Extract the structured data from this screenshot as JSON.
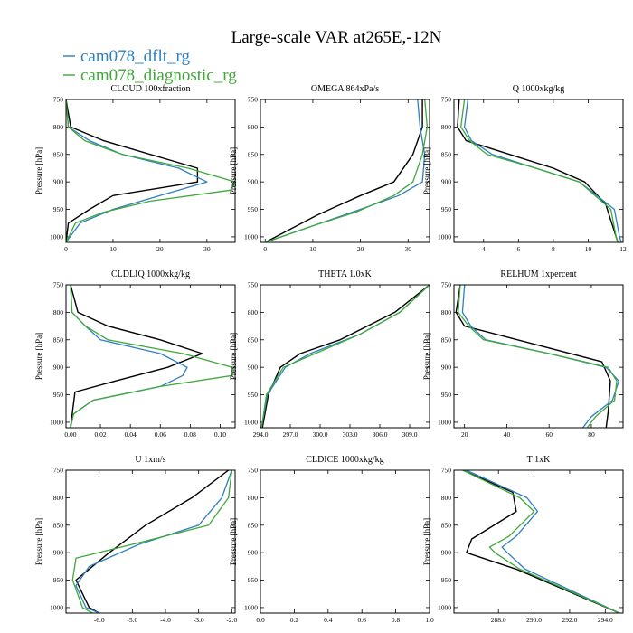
{
  "figure": {
    "title": "Large-scale VAR at265E,-12N",
    "ylabel": "Pressure [hPa]",
    "legend": [
      {
        "name": "cam078_dflt_rg",
        "color": "#2f7fc0"
      },
      {
        "name": "cam078_diagnostic_rg",
        "color": "#3fa83a"
      }
    ],
    "reference_color": "#000000"
  },
  "chart_data": [
    {
      "type": "line",
      "title": "CLOUD  100xfraction",
      "xlim": [
        0,
        36
      ],
      "ylim": [
        1010,
        750
      ],
      "y_ticks": [
        750,
        800,
        850,
        900,
        950,
        1000
      ],
      "x_ticks": [
        0,
        10,
        20,
        30
      ],
      "x_tick_labels": [
        "0",
        "10",
        "20",
        "30"
      ],
      "reference": [
        [
          0,
          750
        ],
        [
          1,
          800
        ],
        [
          8,
          825
        ],
        [
          28,
          875
        ],
        [
          28,
          900
        ],
        [
          10,
          925
        ],
        [
          5,
          950
        ],
        [
          0.5,
          975
        ],
        [
          0,
          1010
        ]
      ],
      "series": [
        {
          "values": [
            [
              0,
              750
            ],
            [
              0.5,
              800
            ],
            [
              5,
              825
            ],
            [
              12,
              850
            ],
            [
              24,
              875
            ],
            [
              30,
              900
            ],
            [
              20,
              925
            ],
            [
              10,
              950
            ],
            [
              3,
              975
            ],
            [
              0,
              1010
            ]
          ]
        },
        {
          "values": [
            [
              0,
              750
            ],
            [
              0.5,
              800
            ],
            [
              4,
              825
            ],
            [
              12,
              850
            ],
            [
              26,
              875
            ],
            [
              36,
              900
            ],
            [
              35,
              915
            ],
            [
              18,
              935
            ],
            [
              8,
              955
            ],
            [
              2,
              975
            ],
            [
              0,
              1010
            ]
          ]
        }
      ]
    },
    {
      "type": "line",
      "title": "OMEGA  864xPa/s",
      "xlim": [
        -1,
        34.5
      ],
      "ylim": [
        1010,
        750
      ],
      "y_ticks": [
        750,
        800,
        850,
        900,
        950,
        1000
      ],
      "x_ticks": [
        0,
        10,
        20,
        30
      ],
      "x_tick_labels": [
        "0",
        "10",
        "20",
        "30"
      ],
      "reference": [
        [
          33,
          750
        ],
        [
          33,
          800
        ],
        [
          31,
          850
        ],
        [
          27,
          900
        ],
        [
          20,
          925
        ],
        [
          11,
          960
        ],
        [
          0,
          1010
        ]
      ],
      "series": [
        {
          "values": [
            [
              32,
              750
            ],
            [
              32.5,
              800
            ],
            [
              33.5,
              850
            ],
            [
              33,
              900
            ],
            [
              28,
              925
            ],
            [
              20,
              950
            ],
            [
              10,
              980
            ],
            [
              0,
              1010
            ]
          ]
        },
        {
          "values": [
            [
              33.5,
              750
            ],
            [
              34,
              800
            ],
            [
              33,
              850
            ],
            [
              31,
              900
            ],
            [
              27,
              925
            ],
            [
              19,
              955
            ],
            [
              10,
              980
            ],
            [
              0,
              1010
            ]
          ]
        }
      ]
    },
    {
      "type": "line",
      "title": "Q  1000xkg/kg",
      "xlim": [
        2.3,
        12
      ],
      "ylim": [
        1010,
        750
      ],
      "y_ticks": [
        750,
        800,
        850,
        900,
        950,
        1000
      ],
      "x_ticks": [
        4,
        6,
        8,
        10,
        12
      ],
      "x_tick_labels": [
        "4",
        "6",
        "8",
        "10",
        "12"
      ],
      "reference": [
        [
          2.6,
          750
        ],
        [
          2.5,
          800
        ],
        [
          3,
          825
        ],
        [
          6,
          855
        ],
        [
          8,
          875
        ],
        [
          9.8,
          900
        ],
        [
          11,
          940
        ],
        [
          11.6,
          1000
        ],
        [
          11.7,
          1010
        ]
      ],
      "series": [
        {
          "values": [
            [
              3.1,
              750
            ],
            [
              2.9,
              800
            ],
            [
              3.3,
              825
            ],
            [
              4.5,
              850
            ],
            [
              7,
              875
            ],
            [
              9.5,
              900
            ],
            [
              11.5,
              950
            ],
            [
              11.8,
              1000
            ],
            [
              11.9,
              1010
            ]
          ]
        },
        {
          "values": [
            [
              2.9,
              750
            ],
            [
              2.7,
              800
            ],
            [
              3.2,
              825
            ],
            [
              4.2,
              850
            ],
            [
              7,
              875
            ],
            [
              9.5,
              900
            ],
            [
              11.3,
              950
            ],
            [
              11.6,
              1000
            ],
            [
              11.7,
              1010
            ]
          ]
        }
      ]
    },
    {
      "type": "line",
      "title": "CLDLIQ  1000xkg/kg",
      "xlim": [
        -0.003,
        0.11
      ],
      "ylim": [
        1010,
        750
      ],
      "y_ticks": [
        750,
        800,
        850,
        900,
        950,
        1000
      ],
      "x_ticks": [
        0,
        0.02,
        0.04,
        0.06,
        0.08,
        0.1
      ],
      "x_tick_labels": [
        "0.00",
        "0.02",
        "0.04",
        "0.06",
        "0.08",
        "0.10"
      ],
      "reference": [
        [
          0,
          750
        ],
        [
          0.005,
          800
        ],
        [
          0.025,
          825
        ],
        [
          0.06,
          850
        ],
        [
          0.088,
          875
        ],
        [
          0.065,
          900
        ],
        [
          0.03,
          925
        ],
        [
          0.003,
          945
        ],
        [
          0,
          1010
        ]
      ],
      "series": [
        {
          "values": [
            [
              0,
              750
            ],
            [
              0.001,
              800
            ],
            [
              0.01,
              825
            ],
            [
              0.02,
              850
            ],
            [
              0.06,
              875
            ],
            [
              0.078,
              900
            ],
            [
              0.075,
              915
            ],
            [
              0.06,
              935
            ],
            [
              0.015,
              960
            ],
            [
              0.002,
              985
            ],
            [
              0,
              1010
            ]
          ]
        },
        {
          "values": [
            [
              0,
              750
            ],
            [
              0.001,
              800
            ],
            [
              0.01,
              825
            ],
            [
              0.025,
              850
            ],
            [
              0.075,
              875
            ],
            [
              0.108,
              900
            ],
            [
              0.108,
              915
            ],
            [
              0.06,
              935
            ],
            [
              0.015,
              960
            ],
            [
              0.002,
              985
            ],
            [
              0,
              1010
            ]
          ]
        }
      ]
    },
    {
      "type": "line",
      "title": "THETA  1.0xK",
      "xlim": [
        294,
        311
      ],
      "ylim": [
        1010,
        750
      ],
      "y_ticks": [
        750,
        800,
        850,
        900,
        950,
        1000
      ],
      "x_ticks": [
        294,
        297,
        300,
        303,
        306,
        309
      ],
      "x_tick_labels": [
        "294.0",
        "297.0",
        "300.0",
        "303.0",
        "306.0",
        "309.0"
      ],
      "reference": [
        [
          311,
          750
        ],
        [
          307.5,
          800
        ],
        [
          302,
          850
        ],
        [
          298,
          875
        ],
        [
          296,
          900
        ],
        [
          294.8,
          950
        ],
        [
          294.3,
          1000
        ],
        [
          294.2,
          1010
        ]
      ],
      "series": [
        {
          "values": [
            [
              311,
              750
            ],
            [
              308,
              800
            ],
            [
              304,
              840
            ],
            [
              299,
              875
            ],
            [
              296.5,
              900
            ],
            [
              294.7,
              950
            ],
            [
              294.2,
              1000
            ],
            [
              294.1,
              1010
            ]
          ]
        },
        {
          "values": [
            [
              311,
              750
            ],
            [
              308,
              800
            ],
            [
              304,
              840
            ],
            [
              299.5,
              875
            ],
            [
              296.3,
              900
            ],
            [
              294.6,
              950
            ],
            [
              294.2,
              1000
            ],
            [
              294.1,
              1010
            ]
          ]
        }
      ]
    },
    {
      "type": "line",
      "title": "RELHUM  1xpercent",
      "xlim": [
        15,
        95
      ],
      "ylim": [
        1010,
        750
      ],
      "y_ticks": [
        750,
        800,
        850,
        900,
        950,
        1000
      ],
      "x_ticks": [
        20,
        40,
        60,
        80
      ],
      "x_tick_labels": [
        "20",
        "40",
        "60",
        "80"
      ],
      "reference": [
        [
          18,
          750
        ],
        [
          16,
          800
        ],
        [
          20,
          825
        ],
        [
          55,
          860
        ],
        [
          85,
          890
        ],
        [
          89,
          925
        ],
        [
          88,
          980
        ],
        [
          87,
          1010
        ]
      ],
      "series": [
        {
          "values": [
            [
              20,
              750
            ],
            [
              19,
              800
            ],
            [
              23,
              825
            ],
            [
              30,
              850
            ],
            [
              60,
              875
            ],
            [
              87,
              900
            ],
            [
              93,
              925
            ],
            [
              90,
              960
            ],
            [
              80,
              990
            ],
            [
              76,
              1010
            ]
          ]
        },
        {
          "values": [
            [
              18,
              750
            ],
            [
              17,
              800
            ],
            [
              22,
              825
            ],
            [
              29,
              850
            ],
            [
              60,
              875
            ],
            [
              88,
              900
            ],
            [
              92,
              925
            ],
            [
              91,
              960
            ],
            [
              82,
              990
            ],
            [
              78,
              1010
            ]
          ]
        }
      ]
    },
    {
      "type": "line",
      "title": "U  1xm/s",
      "xlim": [
        -7,
        -1.9
      ],
      "ylim": [
        1010,
        750
      ],
      "y_ticks": [
        750,
        800,
        850,
        900,
        950,
        1000
      ],
      "x_ticks": [
        -6,
        -5,
        -4,
        -3,
        -2
      ],
      "x_tick_labels": [
        "-6.0",
        "-5.0",
        "-4.0",
        "-3.0",
        "-2.0"
      ],
      "reference": [
        [
          -2.1,
          750
        ],
        [
          -3.2,
          800
        ],
        [
          -4.6,
          850
        ],
        [
          -5.7,
          900
        ],
        [
          -6.7,
          950
        ],
        [
          -6.3,
          1000
        ],
        [
          -6.0,
          1010
        ]
      ],
      "series": [
        {
          "values": [
            [
              -2.0,
              750
            ],
            [
              -2.3,
              800
            ],
            [
              -3.0,
              850
            ],
            [
              -4.8,
              885
            ],
            [
              -6.3,
              925
            ],
            [
              -6.7,
              960
            ],
            [
              -6.4,
              1000
            ],
            [
              -6.0,
              1010
            ]
          ]
        },
        {
          "values": [
            [
              -2.0,
              750
            ],
            [
              -2.1,
              800
            ],
            [
              -2.7,
              850
            ],
            [
              -5.0,
              885
            ],
            [
              -6.7,
              910
            ],
            [
              -6.8,
              950
            ],
            [
              -6.5,
              1000
            ],
            [
              -6.2,
              1010
            ]
          ]
        }
      ]
    },
    {
      "type": "line",
      "title": "CLDICE  1000xkg/kg",
      "xlim": [
        0,
        1
      ],
      "ylim": [
        1010,
        750
      ],
      "y_ticks": [
        750,
        800,
        850,
        900,
        950,
        1000
      ],
      "x_ticks": [
        0,
        0.2,
        0.4,
        0.6,
        0.8,
        1.0
      ],
      "x_tick_labels": [
        "0.0",
        "0.2",
        "0.4",
        "0.6",
        "0.8",
        "1.0"
      ],
      "reference": [],
      "series": [
        {
          "values": []
        },
        {
          "values": []
        }
      ]
    },
    {
      "type": "line",
      "title": "T  1xK",
      "xlim": [
        285.5,
        295
      ],
      "ylim": [
        1010,
        750
      ],
      "y_ticks": [
        750,
        800,
        850,
        900,
        950,
        1000
      ],
      "x_ticks": [
        288,
        290,
        292,
        294
      ],
      "x_tick_labels": [
        "288.0",
        "290.0",
        "292.0",
        "294.0"
      ],
      "reference": [
        [
          286,
          750
        ],
        [
          288.8,
          790
        ],
        [
          289,
          825
        ],
        [
          286.5,
          875
        ],
        [
          286.2,
          900
        ],
        [
          289,
          930
        ],
        [
          294.8,
          1010
        ]
      ],
      "series": [
        {
          "values": [
            [
              286.2,
              750
            ],
            [
              289.6,
              800
            ],
            [
              290.2,
              825
            ],
            [
              289,
              870
            ],
            [
              288.2,
              890
            ],
            [
              288.5,
              900
            ],
            [
              289.5,
              930
            ],
            [
              294.8,
              1010
            ]
          ]
        },
        {
          "values": [
            [
              286,
              750
            ],
            [
              289.2,
              800
            ],
            [
              290,
              825
            ],
            [
              288.6,
              870
            ],
            [
              287.5,
              890
            ],
            [
              287.8,
              900
            ],
            [
              289.2,
              930
            ],
            [
              294.8,
              1010
            ]
          ]
        }
      ]
    }
  ]
}
